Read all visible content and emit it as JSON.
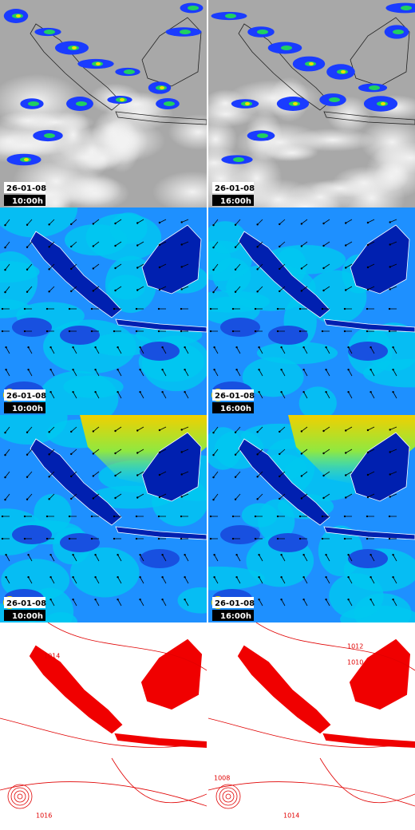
{
  "panels": [
    {
      "date": "26-01-08",
      "time": "10:00h"
    },
    {
      "date": "26-01-08",
      "time": "16:00h"
    },
    {
      "date": "26-01-08",
      "time": "10:00h"
    },
    {
      "date": "26-01-08",
      "time": "16:00h"
    },
    {
      "date": "26-01-08",
      "time": "10:00h"
    },
    {
      "date": "26-01-08",
      "time": "16:00h"
    }
  ],
  "contour_labels": {
    "left": [
      "1014",
      "1016"
    ],
    "right": [
      "1012",
      "1010",
      "1008",
      "1014"
    ]
  }
}
